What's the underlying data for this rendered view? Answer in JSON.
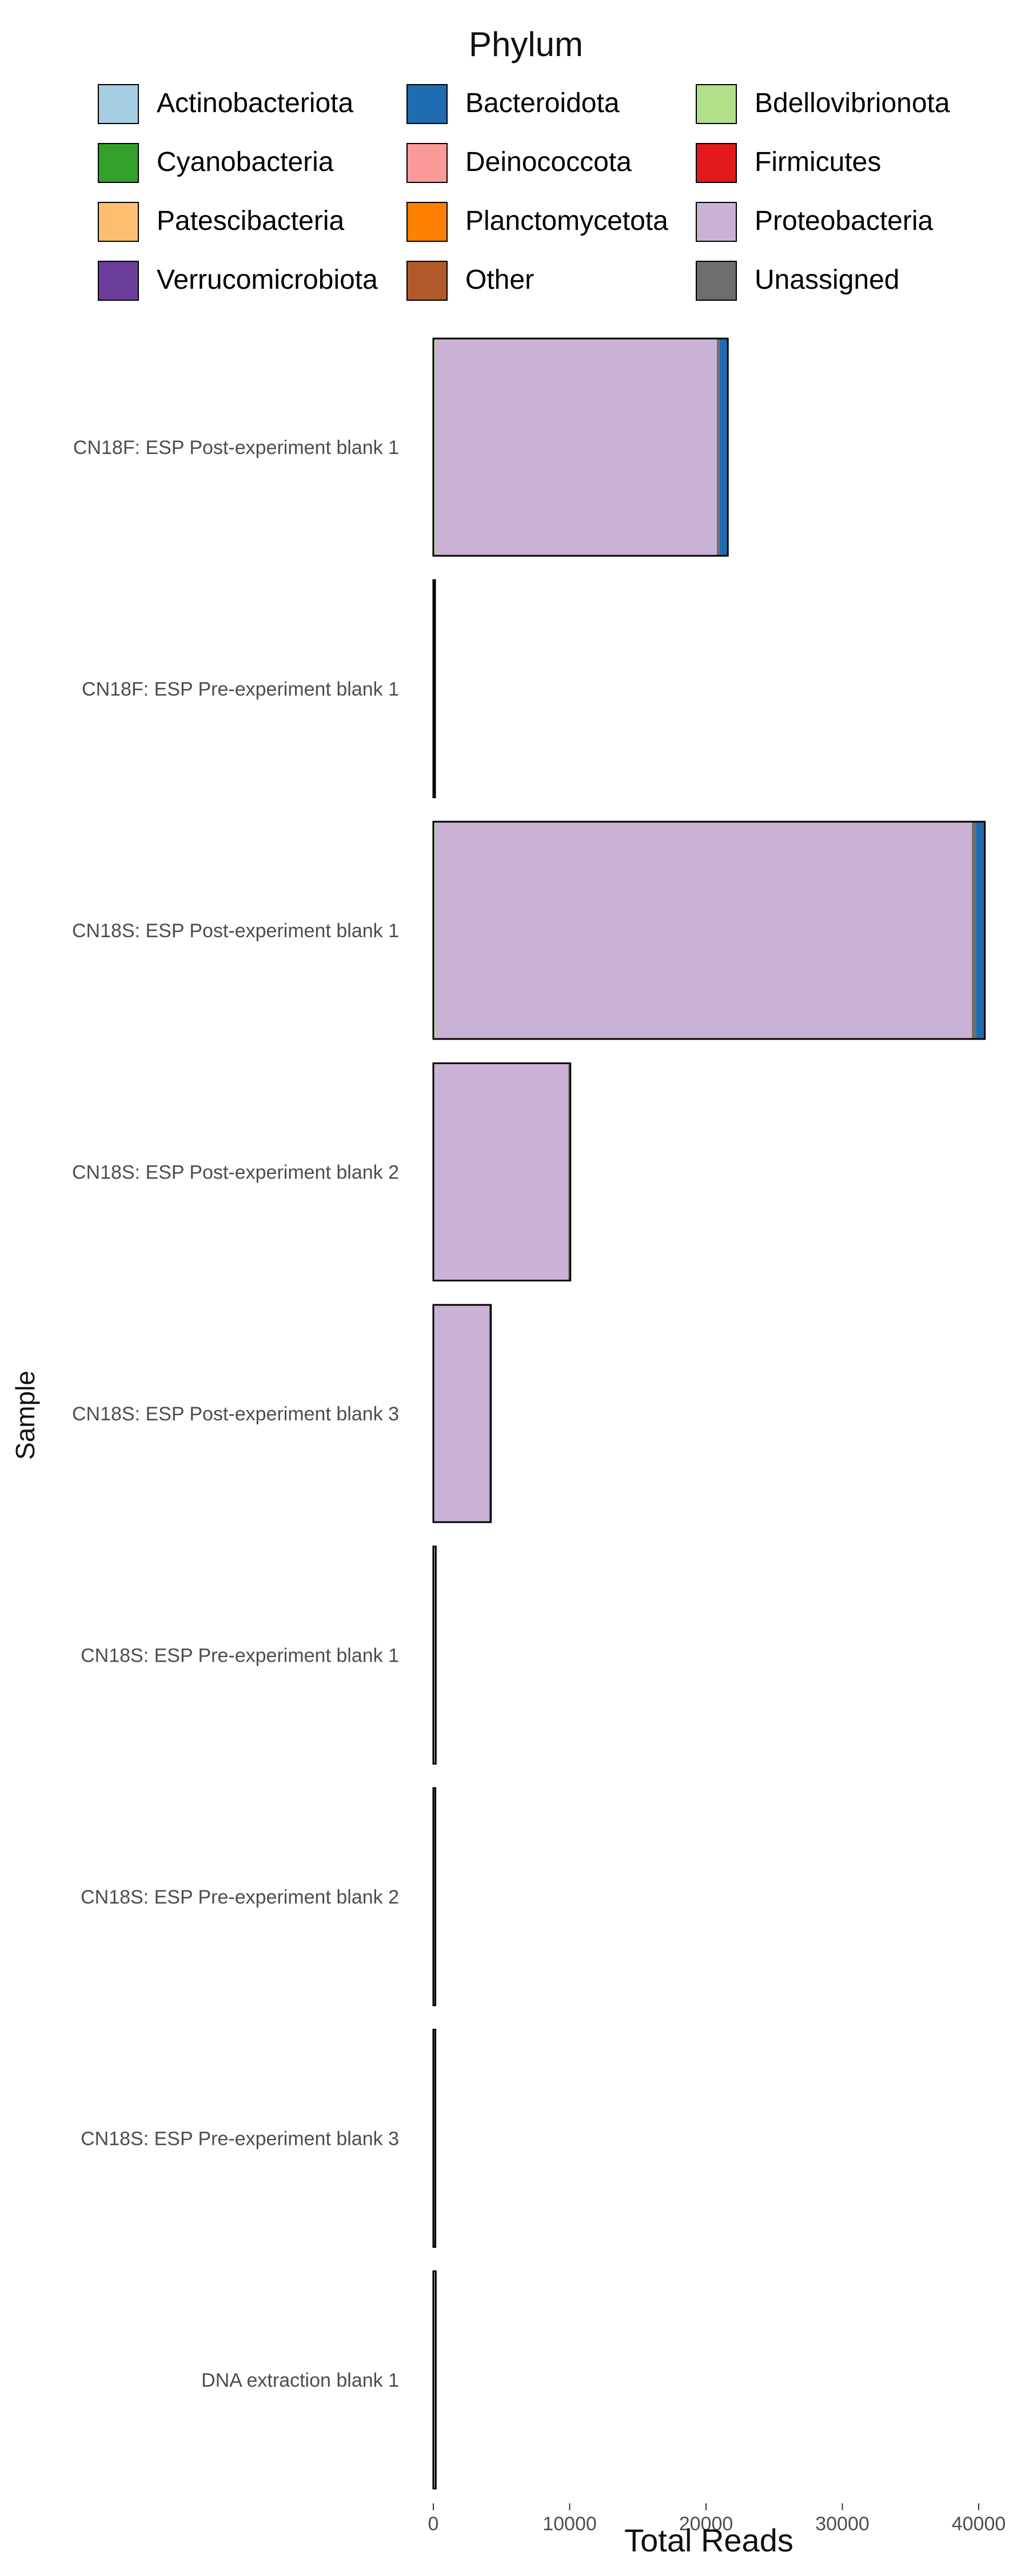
{
  "chart_data": {
    "type": "bar",
    "orientation": "horizontal",
    "stacked": true,
    "xlabel": "Total Reads",
    "ylabel": "Sample",
    "xlim": [
      0,
      42000
    ],
    "xticks": [
      0,
      10000,
      20000,
      30000,
      40000
    ],
    "grid": false,
    "legend": {
      "title": "Phylum",
      "position": "top",
      "entries": [
        {
          "name": "Actinobacteriota",
          "color": "#a6cee3"
        },
        {
          "name": "Bacteroidota",
          "color": "#1f6cb0"
        },
        {
          "name": "Bdellovibrionota",
          "color": "#b2df8a"
        },
        {
          "name": "Cyanobacteria",
          "color": "#33a02c"
        },
        {
          "name": "Deinococcota",
          "color": "#fb9a99"
        },
        {
          "name": "Firmicutes",
          "color": "#e31a1c"
        },
        {
          "name": "Patescibacteria",
          "color": "#fdbf6f"
        },
        {
          "name": "Planctomycetota",
          "color": "#ff7f00"
        },
        {
          "name": "Proteobacteria",
          "color": "#cab2d6"
        },
        {
          "name": "Verrucomicrobiota",
          "color": "#6a3d9a"
        },
        {
          "name": "Other",
          "color": "#b15928"
        },
        {
          "name": "Unassigned",
          "color": "#6d6d6d"
        }
      ]
    },
    "categories": [
      "CN18F: ESP Post-experiment blank 1",
      "CN18F: ESP Pre-experiment blank 1",
      "CN18S: ESP Post-experiment blank 1",
      "CN18S: ESP Post-experiment blank 2",
      "CN18S: ESP Post-experiment blank 3",
      "CN18S: ESP Pre-experiment blank 1",
      "CN18S: ESP Pre-experiment blank 2",
      "CN18S: ESP Pre-experiment blank 3",
      "DNA extraction blank 1"
    ],
    "series": [
      {
        "name": "Bdellovibrionota",
        "values": [
          150,
          0,
          150,
          0,
          0,
          0,
          0,
          0,
          0
        ]
      },
      {
        "name": "Proteobacteria",
        "values": [
          20650,
          20,
          39350,
          9900,
          4100,
          120,
          100,
          100,
          120
        ]
      },
      {
        "name": "Verrucomicrobiota",
        "values": [
          0,
          0,
          0,
          0,
          0,
          0,
          0,
          0,
          0
        ]
      },
      {
        "name": "Other",
        "values": [
          0,
          0,
          0,
          0,
          0,
          0,
          0,
          0,
          0
        ]
      },
      {
        "name": "Unassigned",
        "values": [
          200,
          30,
          300,
          150,
          120,
          60,
          50,
          50,
          60
        ]
      },
      {
        "name": "Bacteroidota",
        "values": [
          600,
          0,
          650,
          0,
          0,
          0,
          0,
          0,
          0
        ]
      }
    ]
  }
}
